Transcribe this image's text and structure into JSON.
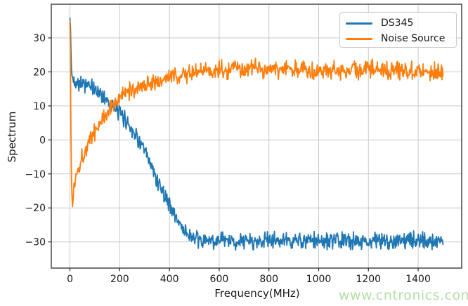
{
  "figure": {
    "background": "#ffffff",
    "watermark": {
      "text": "www.cntronics.com",
      "color": "#b2dfa8"
    }
  },
  "chart_data": {
    "type": "line",
    "title": "",
    "xlabel": "Frequency(MHz)",
    "ylabel": "Spectrum",
    "xlim": [
      -75,
      1575
    ],
    "ylim": [
      -37.7,
      39.9
    ],
    "grid": true,
    "legend_position": "upper right",
    "x_ticks": [
      0,
      200,
      400,
      600,
      800,
      1000,
      1200,
      1400
    ],
    "x_tick_labels": [
      "0",
      "200",
      "400",
      "600",
      "800",
      "1000",
      "1200",
      "1400"
    ],
    "y_ticks": [
      30,
      20,
      10,
      0,
      -10,
      -20,
      -30
    ],
    "y_tick_labels": [
      "30",
      "20",
      "10",
      "0",
      "−10",
      "−20",
      "−30"
    ],
    "styles": {
      "grid_color": "#c9c9c9",
      "spine_color": "#2b2b2b",
      "tick_color": "#2b2b2b",
      "tick_label_color": "#1a1a1a",
      "line_width": 1.8
    },
    "series": [
      {
        "name": "DS345",
        "color": "#1f77b4",
        "noise_peak": 3.0,
        "seed": 42,
        "points": [
          [
            0,
            35.8
          ],
          [
            2,
            33
          ],
          [
            4,
            26
          ],
          [
            6,
            21
          ],
          [
            8,
            18.6
          ],
          [
            12,
            17.8
          ],
          [
            20,
            17.4
          ],
          [
            30,
            17.2
          ],
          [
            40,
            17.0
          ],
          [
            55,
            16.6
          ],
          [
            70,
            16.0
          ],
          [
            85,
            15.4
          ],
          [
            100,
            14.8
          ],
          [
            115,
            14.0
          ],
          [
            130,
            13.2
          ],
          [
            145,
            12.2
          ],
          [
            160,
            10.8
          ],
          [
            175,
            9.6
          ],
          [
            190,
            8.4
          ],
          [
            205,
            7.4
          ],
          [
            220,
            6.2
          ],
          [
            235,
            4.8
          ],
          [
            250,
            3.2
          ],
          [
            265,
            1.4
          ],
          [
            280,
            -0.6
          ],
          [
            295,
            -2.8
          ],
          [
            310,
            -5.2
          ],
          [
            325,
            -7.6
          ],
          [
            340,
            -10.0
          ],
          [
            355,
            -12.4
          ],
          [
            370,
            -14.6
          ],
          [
            385,
            -16.8
          ],
          [
            400,
            -19.0
          ],
          [
            415,
            -21.2
          ],
          [
            430,
            -23.2
          ],
          [
            445,
            -25.0
          ],
          [
            460,
            -26.6
          ],
          [
            475,
            -27.8
          ],
          [
            490,
            -28.8
          ],
          [
            510,
            -29.6
          ],
          [
            540,
            -29.8
          ],
          [
            600,
            -29.6
          ],
          [
            650,
            -29.9
          ],
          [
            700,
            -29.7
          ],
          [
            750,
            -29.9
          ],
          [
            800,
            -29.4
          ],
          [
            850,
            -29.8
          ],
          [
            900,
            -29.6
          ],
          [
            950,
            -29.9
          ],
          [
            1000,
            -29.6
          ],
          [
            1050,
            -29.9
          ],
          [
            1100,
            -29.7
          ],
          [
            1150,
            -29.5
          ],
          [
            1200,
            -29.8
          ],
          [
            1250,
            -29.6
          ],
          [
            1300,
            -29.6
          ],
          [
            1350,
            -29.8
          ],
          [
            1400,
            -29.5
          ],
          [
            1450,
            -29.8
          ],
          [
            1500,
            -29.5
          ]
        ]
      },
      {
        "name": "Noise Source",
        "color": "#ff7f0e",
        "noise_peak": 3.2,
        "seed": 1337,
        "points": [
          [
            0,
            35.0
          ],
          [
            2,
            22
          ],
          [
            4,
            2
          ],
          [
            6,
            -11
          ],
          [
            8,
            -16.5
          ],
          [
            10,
            -19.3
          ],
          [
            12,
            -18.0
          ],
          [
            15,
            -15.0
          ],
          [
            18,
            -12.8
          ],
          [
            22,
            -11.0
          ],
          [
            27,
            -9.6
          ],
          [
            33,
            -8.2
          ],
          [
            40,
            -6.8
          ],
          [
            48,
            -5.2
          ],
          [
            56,
            -3.8
          ],
          [
            65,
            -2.4
          ],
          [
            75,
            -0.9
          ],
          [
            85,
            0.6
          ],
          [
            95,
            2.0
          ],
          [
            110,
            3.8
          ],
          [
            125,
            5.4
          ],
          [
            140,
            7.0
          ],
          [
            155,
            8.8
          ],
          [
            170,
            10.2
          ],
          [
            185,
            11.4
          ],
          [
            200,
            12.4
          ],
          [
            215,
            13.2
          ],
          [
            230,
            13.9
          ],
          [
            245,
            14.5
          ],
          [
            260,
            15.0
          ],
          [
            280,
            15.6
          ],
          [
            300,
            16.1
          ],
          [
            320,
            16.6
          ],
          [
            340,
            17.1
          ],
          [
            360,
            17.5
          ],
          [
            380,
            17.9
          ],
          [
            400,
            18.3
          ],
          [
            430,
            18.8
          ],
          [
            460,
            19.3
          ],
          [
            490,
            19.7
          ],
          [
            520,
            20.0
          ],
          [
            560,
            20.4
          ],
          [
            600,
            20.6
          ],
          [
            650,
            20.8
          ],
          [
            700,
            20.8
          ],
          [
            750,
            20.9
          ],
          [
            800,
            20.8
          ],
          [
            850,
            20.7
          ],
          [
            900,
            20.9
          ],
          [
            950,
            20.7
          ],
          [
            1000,
            20.6
          ],
          [
            1050,
            20.5
          ],
          [
            1100,
            20.4
          ],
          [
            1150,
            20.5
          ],
          [
            1200,
            20.6
          ],
          [
            1250,
            20.7
          ],
          [
            1300,
            20.6
          ],
          [
            1350,
            20.5
          ],
          [
            1400,
            20.7
          ],
          [
            1450,
            20.4
          ],
          [
            1500,
            20.1
          ]
        ]
      }
    ]
  }
}
